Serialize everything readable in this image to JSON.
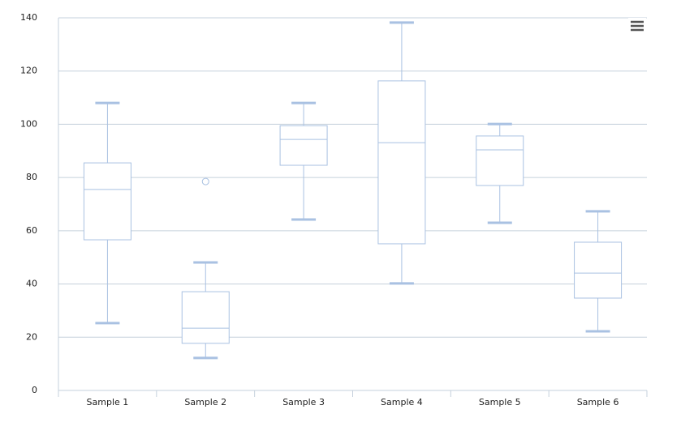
{
  "chart_data": {
    "type": "boxplot",
    "categories": [
      "Sample 1",
      "Sample 2",
      "Sample 3",
      "Sample 4",
      "Sample 5",
      "Sample 6"
    ],
    "color": "#a9c1e2",
    "low": [
      25.3,
      12.2,
      64.2,
      40.2,
      63,
      22.2
    ],
    "q1": [
      56.6,
      17.7,
      84.6,
      55.1,
      77,
      34.7
    ],
    "median": [
      75.5,
      23.4,
      94.3,
      93.1,
      90.4,
      44.1
    ],
    "q3": [
      85.5,
      37.1,
      99.5,
      116.3,
      95.6,
      55.7
    ],
    "high": [
      108,
      48.1,
      108,
      138.2,
      100.1,
      67.3
    ],
    "outliers": [
      [],
      [
        78.5
      ],
      [],
      [],
      [],
      []
    ],
    "ylim": [
      0,
      140
    ],
    "yticks": [
      0,
      20,
      40,
      60,
      80,
      100,
      120,
      140
    ],
    "grid": true
  }
}
